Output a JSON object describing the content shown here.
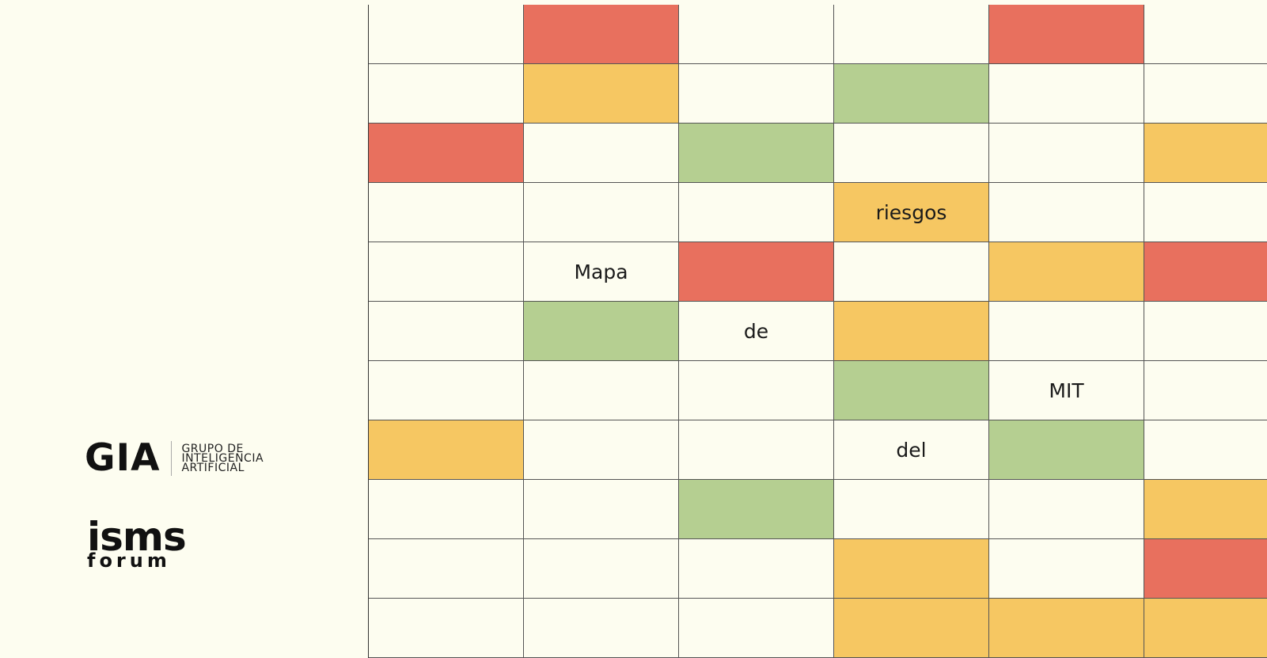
{
  "logos": {
    "gia": {
      "mark": "GIA",
      "lines": [
        "GRUPO DE",
        "INTELIGENCIA",
        "ARTIFICIAL"
      ]
    },
    "isms": {
      "word": "isms",
      "sub": "forum"
    }
  },
  "colors": {
    "background": "#fdfdf0",
    "red": "#e8705e",
    "yellow": "#f6c762",
    "green": "#b5cf91"
  },
  "title_words": [
    "Mapa",
    "de",
    "riesgos",
    "del",
    "MIT"
  ],
  "grid": {
    "rows": [
      [
        {
          "c": "W"
        },
        {
          "c": "R"
        },
        {
          "c": "W"
        },
        {
          "c": "W"
        },
        {
          "c": "R"
        },
        {
          "c": "W"
        }
      ],
      [
        {
          "c": "W"
        },
        {
          "c": "Y"
        },
        {
          "c": "W"
        },
        {
          "c": "G"
        },
        {
          "c": "W"
        },
        {
          "c": "W"
        }
      ],
      [
        {
          "c": "R"
        },
        {
          "c": "W"
        },
        {
          "c": "G"
        },
        {
          "c": "W"
        },
        {
          "c": "W"
        },
        {
          "c": "Y"
        }
      ],
      [
        {
          "c": "W"
        },
        {
          "c": "W"
        },
        {
          "c": "W"
        },
        {
          "c": "Y",
          "t": "riesgos"
        },
        {
          "c": "W"
        },
        {
          "c": "W"
        }
      ],
      [
        {
          "c": "W"
        },
        {
          "c": "W",
          "t": "Mapa"
        },
        {
          "c": "R"
        },
        {
          "c": "W"
        },
        {
          "c": "Y"
        },
        {
          "c": "R"
        }
      ],
      [
        {
          "c": "W"
        },
        {
          "c": "G"
        },
        {
          "c": "W",
          "t": "de"
        },
        {
          "c": "Y"
        },
        {
          "c": "W"
        },
        {
          "c": "W"
        }
      ],
      [
        {
          "c": "W"
        },
        {
          "c": "W"
        },
        {
          "c": "W"
        },
        {
          "c": "G"
        },
        {
          "c": "W",
          "t": "MIT"
        },
        {
          "c": "W"
        }
      ],
      [
        {
          "c": "Y"
        },
        {
          "c": "W"
        },
        {
          "c": "W"
        },
        {
          "c": "W",
          "t": "del"
        },
        {
          "c": "G"
        },
        {
          "c": "W"
        }
      ],
      [
        {
          "c": "W"
        },
        {
          "c": "W"
        },
        {
          "c": "G"
        },
        {
          "c": "W"
        },
        {
          "c": "W"
        },
        {
          "c": "Y"
        }
      ],
      [
        {
          "c": "W"
        },
        {
          "c": "W"
        },
        {
          "c": "W"
        },
        {
          "c": "Y"
        },
        {
          "c": "W"
        },
        {
          "c": "R"
        }
      ],
      [
        {
          "c": "W"
        },
        {
          "c": "W"
        },
        {
          "c": "W"
        },
        {
          "c": "Y"
        },
        {
          "c": "Y"
        },
        {
          "c": "Y"
        }
      ]
    ]
  }
}
